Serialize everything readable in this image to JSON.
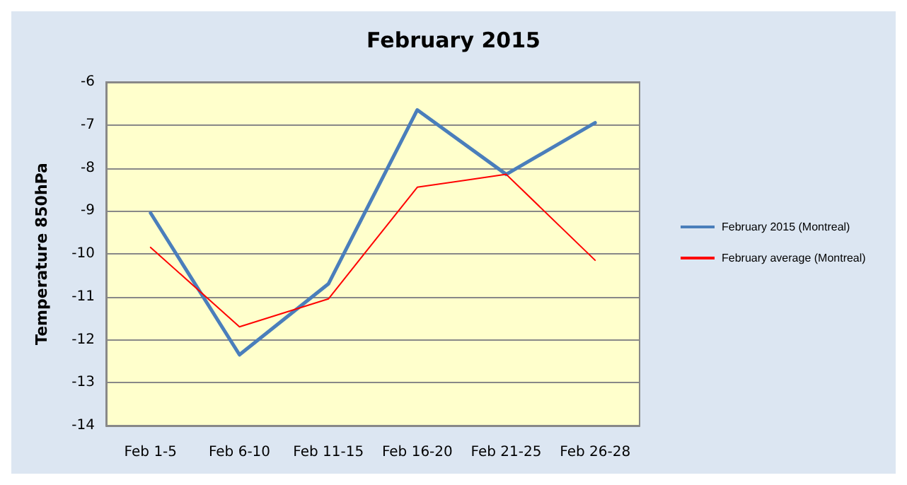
{
  "chart_data": {
    "type": "line",
    "title": "February 2015",
    "ylabel": "Temperature 850hPa",
    "categories": [
      "Feb 1-5",
      "Feb 6-10",
      "Feb 11-15",
      "Feb 16-20",
      "Feb 21-25",
      "Feb 26-28"
    ],
    "series": [
      {
        "name": "February 2015 (Montreal)",
        "color": "#4a7ebb",
        "values": [
          -9.05,
          -12.35,
          -10.7,
          -6.65,
          -8.15,
          -6.95
        ]
      },
      {
        "name": "February average (Montreal)",
        "color": "#ff0000",
        "values": [
          -9.85,
          -11.7,
          -11.05,
          -8.45,
          -8.15,
          -10.15
        ]
      }
    ],
    "ylim": [
      -14,
      -6
    ],
    "yticks": [
      -14,
      -13,
      -12,
      -11,
      -10,
      -9,
      -8,
      -7,
      -6
    ],
    "grid": "y",
    "legend": "right",
    "marker": "none",
    "line_style": "solid"
  }
}
